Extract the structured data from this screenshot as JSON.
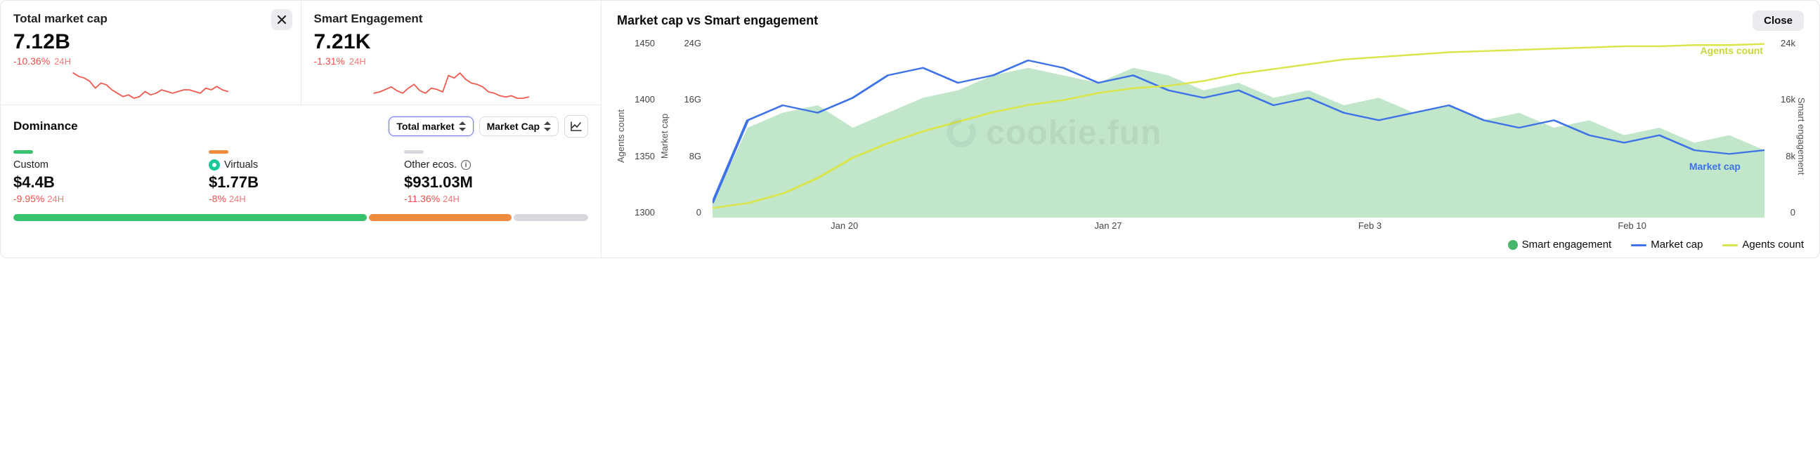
{
  "watermark_text": "cookie.fun",
  "colors": {
    "neg": "#ef4d4d",
    "spark": "#f05a4f",
    "area_fill": "#9fd9ad",
    "area_fill_opacity": 0.65,
    "market_cap_line": "#3d73e6",
    "agents_line": "#d9e548",
    "grid": "#f1f1f4",
    "close_chip_bg": "#ececf0",
    "border": "#e9e9ec",
    "custom": "#39c26d",
    "virtuals": "#f08a3c",
    "other": "#d8d8de"
  },
  "cards": {
    "total_market_cap": {
      "title": "Total market cap",
      "value": "7.12B",
      "change_pct": "-10.36%",
      "period": "24H",
      "spark": [
        58,
        56,
        55,
        53,
        49,
        52,
        51,
        48,
        46,
        44,
        45,
        43,
        44,
        47,
        45,
        46,
        48,
        47,
        46,
        47,
        48,
        48,
        47,
        46,
        49,
        48,
        50,
        48,
        47
      ]
    },
    "smart_engagement": {
      "title": "Smart Engagement",
      "value": "7.21K",
      "change_pct": "-1.31%",
      "period": "24H",
      "spark": [
        44,
        45,
        47,
        49,
        46,
        44,
        48,
        51,
        46,
        44,
        48,
        47,
        45,
        58,
        56,
        60,
        55,
        52,
        51,
        49,
        45,
        44,
        42,
        41,
        42,
        40,
        40,
        41
      ]
    }
  },
  "dominance": {
    "title": "Dominance",
    "select1": "Total market",
    "select2": "Market Cap",
    "categories": [
      {
        "key": "custom",
        "label": "Custom",
        "value": "$4.4B",
        "change_pct": "-9.95%",
        "period": "24H",
        "color": "#39c26d",
        "share": 0.62
      },
      {
        "key": "virtuals",
        "label": "Virtuals",
        "value": "$1.77B",
        "change_pct": "-8%",
        "period": "24H",
        "color": "#f08a3c",
        "share": 0.25,
        "icon": "virtuals"
      },
      {
        "key": "other",
        "label": "Other ecos.",
        "value": "$931.03M",
        "change_pct": "-11.36%",
        "period": "24H",
        "color": "#d8d8de",
        "share": 0.13,
        "info": true
      }
    ]
  },
  "chart": {
    "title": "Market cap vs Smart engagement",
    "close_label": "Close",
    "left_axis_outer": {
      "label": "Agents count",
      "ticks": [
        "1450",
        "1400",
        "1350",
        "1300"
      ],
      "lim": [
        1300,
        1450
      ]
    },
    "left_axis_inner": {
      "label": "Market cap",
      "ticks": [
        "24G",
        "16G",
        "8G",
        "0"
      ],
      "lim": [
        0,
        24
      ]
    },
    "right_axis": {
      "label": "Smart engagement",
      "ticks": [
        "24k",
        "16k",
        "8k",
        "0"
      ],
      "lim": [
        0,
        24
      ]
    },
    "x_ticks": [
      "Jan 20",
      "Jan 27",
      "Feb 3",
      "Feb 10"
    ],
    "annotations": {
      "agents_count": {
        "text": "Agents count",
        "color": "#c9d63a"
      },
      "market_cap": {
        "text": "Market cap",
        "color": "#3d73e6"
      }
    },
    "legend": [
      {
        "label": "Smart engagement",
        "type": "dot",
        "color": "#47b66b"
      },
      {
        "label": "Market cap",
        "type": "line",
        "color": "#3d73e6"
      },
      {
        "label": "Agents count",
        "type": "line",
        "color": "#d9e548"
      }
    ],
    "series": {
      "x_domain": [
        0,
        30
      ],
      "smart_engagement": [
        2,
        12,
        14,
        15,
        12,
        14,
        16,
        17,
        19,
        20,
        19,
        18,
        20,
        19,
        17,
        18,
        16,
        17,
        15,
        16,
        14,
        15,
        13,
        14,
        12,
        13,
        11,
        12,
        10,
        11,
        9
      ],
      "market_cap": [
        2,
        13,
        15,
        14,
        16,
        19,
        20,
        18,
        19,
        21,
        20,
        18,
        19,
        17,
        16,
        17,
        15,
        16,
        14,
        13,
        14,
        15,
        13,
        12,
        13,
        11,
        10,
        11,
        9,
        8.5,
        9
      ],
      "agents_count": [
        1308,
        1312,
        1320,
        1333,
        1350,
        1362,
        1372,
        1380,
        1388,
        1394,
        1398,
        1404,
        1408,
        1410,
        1414,
        1420,
        1424,
        1428,
        1432,
        1434,
        1436,
        1438,
        1439,
        1440,
        1441,
        1442,
        1443,
        1443,
        1444,
        1444,
        1445
      ]
    }
  }
}
